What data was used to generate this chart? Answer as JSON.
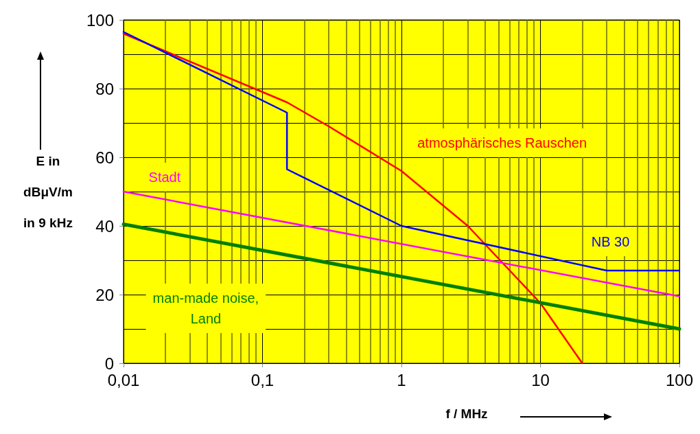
{
  "chart_data": {
    "type": "line",
    "xlabel": "f / MHz",
    "ylabel": "E in\ndBμV/m\nin 9 kHz",
    "series": [
      {
        "name": "atmosphärisches Rauschen",
        "color": "#ff0000",
        "x": [
          0.01,
          0.1,
          0.15,
          0.3,
          1,
          3,
          10,
          20
        ],
        "values": [
          96,
          79,
          76,
          69,
          56,
          40,
          17.5,
          0
        ]
      },
      {
        "name": "NB 30",
        "color": "#0000ff",
        "x": [
          0.01,
          0.15,
          0.15,
          1,
          30,
          100
        ],
        "values": [
          96.5,
          73,
          56.5,
          40,
          27,
          27
        ]
      },
      {
        "name": "Stadt",
        "color": "#ff00ff",
        "x": [
          0.01,
          100
        ],
        "values": [
          50,
          19.5
        ]
      },
      {
        "name": "man-made noise,\nLand",
        "color": "#008000",
        "x": [
          0.01,
          100
        ],
        "values": [
          40.5,
          10
        ]
      }
    ],
    "log": "x",
    "xlim": [
      0.01,
      100
    ],
    "xticks": [
      {
        "value": 0.01,
        "label": "0,01"
      },
      {
        "value": 0.02,
        "label": null
      },
      {
        "value": 0.03,
        "label": null
      },
      {
        "value": 0.04,
        "label": null
      },
      {
        "value": 0.05,
        "label": null
      },
      {
        "value": 0.06,
        "label": null
      },
      {
        "value": 0.07,
        "label": null
      },
      {
        "value": 0.08,
        "label": null
      },
      {
        "value": 0.09,
        "label": null
      },
      {
        "value": 0.1,
        "label": "0,1"
      },
      {
        "value": 0.2,
        "label": null
      },
      {
        "value": 0.3,
        "label": null
      },
      {
        "value": 0.4,
        "label": null
      },
      {
        "value": 0.5,
        "label": null
      },
      {
        "value": 0.6,
        "label": null
      },
      {
        "value": 0.7,
        "label": null
      },
      {
        "value": 0.8,
        "label": null
      },
      {
        "value": 0.9,
        "label": null
      },
      1,
      {
        "value": 2,
        "label": null
      },
      {
        "value": 3,
        "label": null
      },
      {
        "value": 4,
        "label": null
      },
      {
        "value": 5,
        "label": null
      },
      {
        "value": 6,
        "label": null
      },
      {
        "value": 7,
        "label": null
      },
      {
        "value": 8,
        "label": null
      },
      {
        "value": 9,
        "label": null
      },
      10,
      {
        "value": 20,
        "label": null
      },
      {
        "value": 30,
        "label": null
      },
      {
        "value": 40,
        "label": null
      },
      {
        "value": 50,
        "label": null
      },
      {
        "value": 60,
        "label": null
      },
      {
        "value": 70,
        "label": null
      },
      {
        "value": 80,
        "label": null
      },
      {
        "value": 90,
        "label": null
      },
      100
    ],
    "ylim": [
      0,
      100
    ],
    "yticks": [
      0,
      20,
      40,
      60,
      80,
      100
    ],
    "grid": true,
    "marker": "none",
    "line_style": "solid"
  }
}
